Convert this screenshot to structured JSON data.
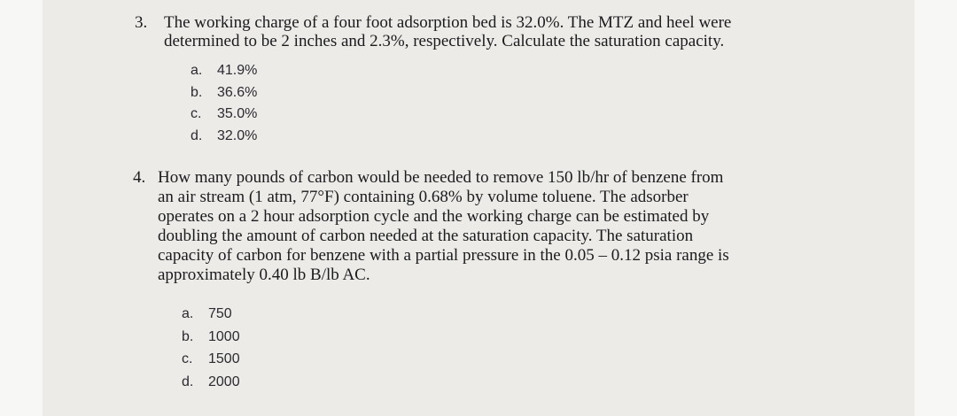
{
  "questions": [
    {
      "number": "3.",
      "lines": [
        "The working charge of a four foot adsorption bed is 32.0%. The MTZ and heel were",
        "determined to be 2 inches and 2.3%, respectively. Calculate the saturation capacity."
      ],
      "options": [
        {
          "letter": "a.",
          "text": "41.9%"
        },
        {
          "letter": "b.",
          "text": "36.6%"
        },
        {
          "letter": "c.",
          "text": "35.0%"
        },
        {
          "letter": "d.",
          "text": "32.0%"
        }
      ]
    },
    {
      "number": "4.",
      "lines": [
        "How many pounds of carbon would be needed to remove 150 lb/hr of benzene from",
        "an air stream (1 atm, 77°F) containing 0.68% by volume toluene. The adsorber",
        "operates on a 2 hour adsorption cycle and the working charge can be estimated by",
        "doubling the amount of carbon needed at the saturation capacity. The saturation",
        "capacity of carbon for benzene with a partial pressure in the 0.05 – 0.12 psia range is",
        "approximately 0.40 lb B/lb AC."
      ],
      "options": [
        {
          "letter": "a.",
          "text": "750"
        },
        {
          "letter": "b.",
          "text": "1000"
        },
        {
          "letter": "c.",
          "text": "1500"
        },
        {
          "letter": "d.",
          "text": "2000"
        }
      ]
    }
  ]
}
